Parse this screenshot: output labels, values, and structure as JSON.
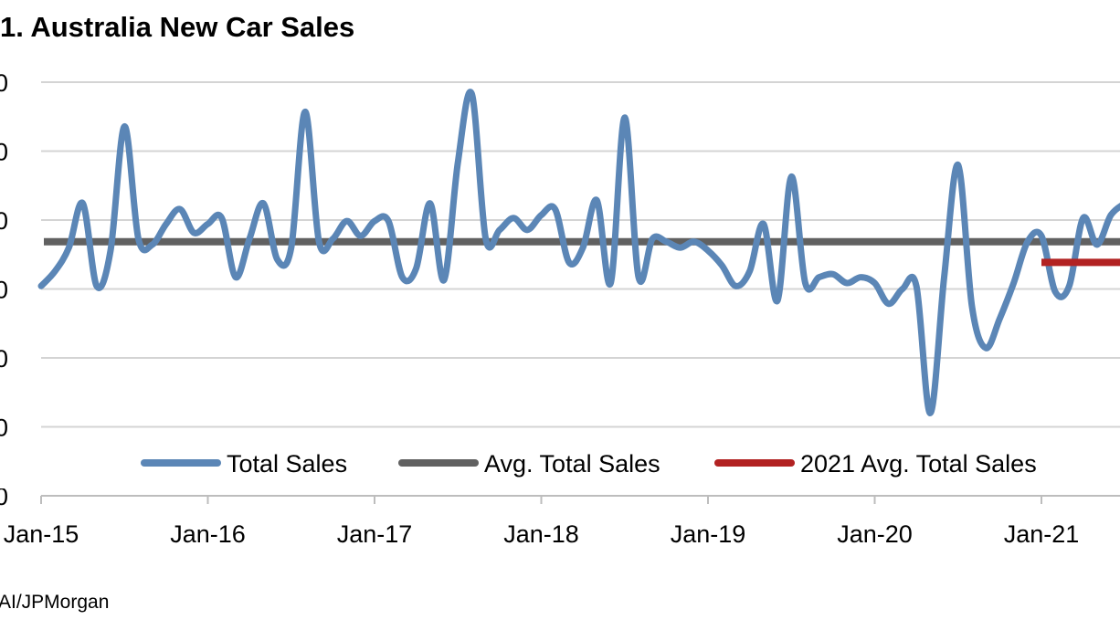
{
  "title": "1. Australia New Car Sales",
  "source": "AI/JPMorgan",
  "chart_data": {
    "type": "line",
    "title": "1. Australia New Car Sales",
    "xlabel": "",
    "ylabel": "",
    "x_tick_labels": [
      "Jan-15",
      "Jan-16",
      "Jan-17",
      "Jan-18",
      "Jan-19",
      "Jan-20",
      "Jan-21"
    ],
    "y_tick_labels": [
      "0",
      "0",
      "0",
      "0",
      "0",
      "0",
      "0"
    ],
    "grid": true,
    "legend_position": "bottom",
    "colors": {
      "total": "#5b86b6",
      "avg": "#616161",
      "avg2021": "#b22222",
      "grid": "#d4d4d4"
    },
    "series": [
      {
        "name": "Total Sales",
        "color": "#5b86b6",
        "values": [
          -4.9,
          -4.4,
          -3.6,
          -2.1,
          -4.9,
          -3.7,
          0.5,
          -3.3,
          -3.5,
          -2.8,
          -2.3,
          -3.1,
          -2.8,
          -2.6,
          -4.6,
          -3.3,
          -2.1,
          -4.0,
          -3.6,
          1.0,
          -3.4,
          -3.3,
          -2.7,
          -3.2,
          -2.7,
          -2.7,
          -4.6,
          -4.3,
          -2.1,
          -4.7,
          -0.7,
          1.6,
          -3.3,
          -3.0,
          -2.6,
          -3.0,
          -2.5,
          -2.3,
          -4.1,
          -3.6,
          -2.0,
          -4.8,
          0.8,
          -4.6,
          -3.3,
          -3.4,
          -3.6,
          -3.4,
          -3.7,
          -4.2,
          -4.9,
          -4.4,
          -2.8,
          -5.4,
          -1.2,
          -4.8,
          -4.6,
          -4.5,
          -4.8,
          -4.6,
          -4.8,
          -5.5,
          -5.0,
          -4.9,
          -9.2,
          -4.6,
          -0.8,
          -5.6,
          -7.0,
          -6.0,
          -4.8,
          -3.4,
          -3.2,
          -5.1,
          -4.9,
          -2.6,
          -3.5,
          -2.5,
          -2.1
        ]
      },
      {
        "name": "Avg. Total Sales",
        "color": "#616161",
        "values": [
          -3.4
        ]
      },
      {
        "name": "2021 Avg. Total Sales",
        "color": "#b22222",
        "values": [
          -4.1
        ]
      }
    ],
    "x_range_months": [
      0,
      79
    ],
    "ylim": [
      -12.0,
      2.0
    ]
  }
}
